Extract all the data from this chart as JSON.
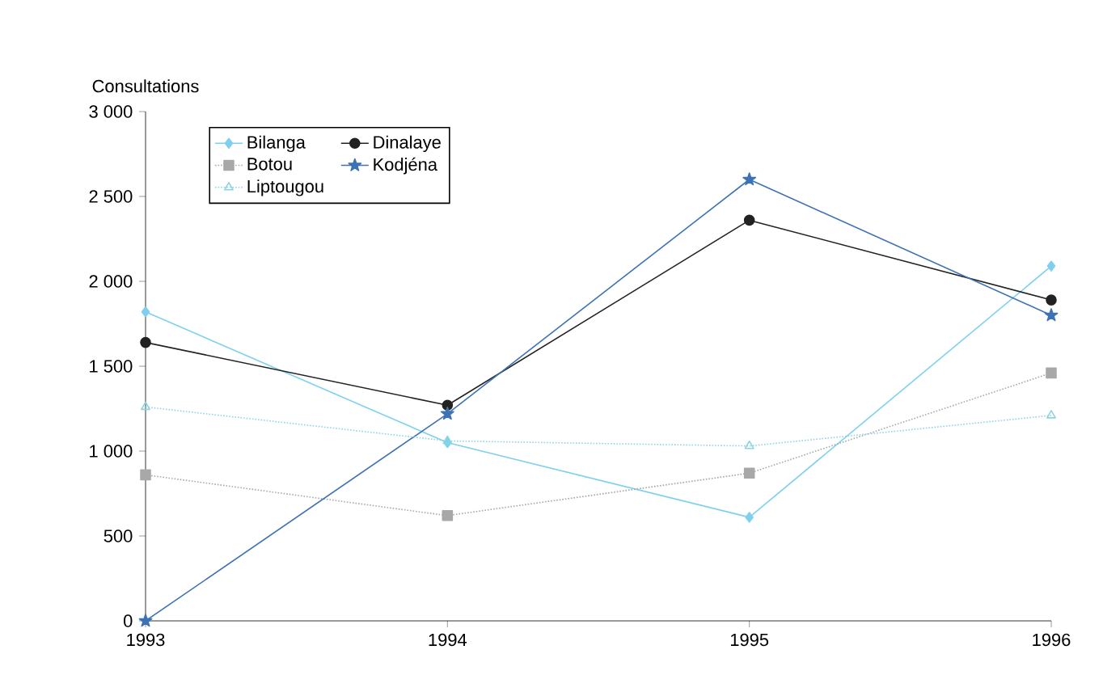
{
  "chart_data": {
    "type": "line",
    "ylabel": "Consultations",
    "x": [
      1993,
      1994,
      1995,
      1996
    ],
    "series": [
      {
        "name": "Bilanga",
        "color": "#7fd0ee",
        "marker": "diamond",
        "line_style": "solid",
        "values": [
          1820,
          1050,
          610,
          2090
        ]
      },
      {
        "name": "Dinalaye",
        "color": "#222222",
        "marker": "circle",
        "line_style": "solid",
        "values": [
          1640,
          1270,
          2360,
          1890
        ]
      },
      {
        "name": "Botou",
        "color": "#a8a8a8",
        "marker": "square",
        "line_style": "dotted",
        "values": [
          860,
          620,
          870,
          1460
        ]
      },
      {
        "name": "Kodjéna",
        "color": "#3d72b4",
        "marker": "star",
        "line_style": "solid",
        "values": [
          0,
          1220,
          2600,
          1800
        ]
      },
      {
        "name": "Liptougou",
        "color": "#8fd3e0",
        "marker": "triangle",
        "line_style": "dotted",
        "values": [
          1260,
          1060,
          1030,
          1210
        ]
      }
    ],
    "xlim": [
      1993,
      1996
    ],
    "xticks": [
      1993,
      1994,
      1995,
      1996
    ],
    "ylim": [
      0,
      3000
    ],
    "yticks": [
      0,
      500,
      {
        "value": 1000,
        "label": "1 000"
      },
      {
        "value": 1500,
        "label": "1 500"
      },
      {
        "value": 2000,
        "label": "2 000"
      },
      {
        "value": 2500,
        "label": "2 500"
      },
      {
        "value": 3000,
        "label": "3 000"
      }
    ],
    "legend": "top left"
  }
}
